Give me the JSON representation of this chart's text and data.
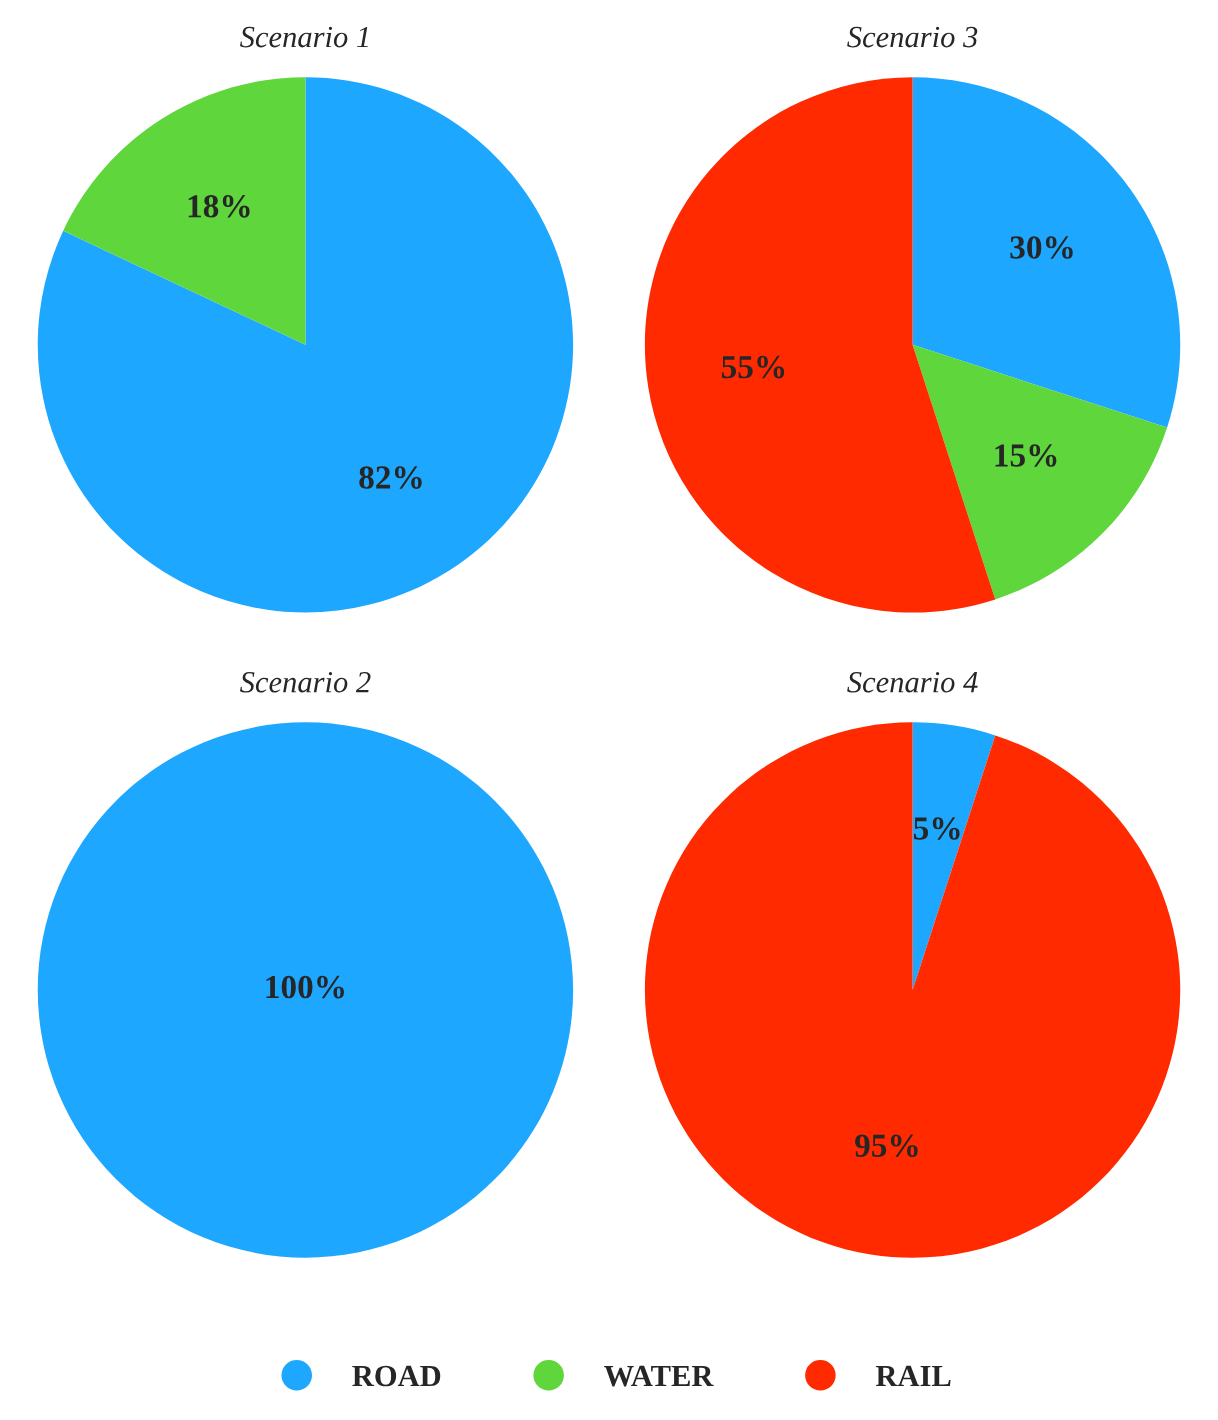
{
  "chart_data": [
    {
      "type": "pie",
      "title": "Scenario 1",
      "categories": [
        "ROAD",
        "WATER",
        "RAIL"
      ],
      "values": [
        82,
        18,
        0
      ],
      "colors": [
        "#1ea7ff",
        "#5fd63c",
        "#ff2a00"
      ],
      "value_labels": [
        "82%",
        "18%",
        null
      ],
      "legend": "bottom"
    },
    {
      "type": "pie",
      "title": "Scenario 3",
      "categories": [
        null,
        null,
        null
      ],
      "values": [
        30,
        15,
        55
      ],
      "colors": [
        "#1ea7ff",
        "#5fd63c",
        "#ff2a00"
      ],
      "value_labels": [
        "30%",
        "15%",
        "55%"
      ]
    },
    {
      "type": "pie",
      "title": "Scenario 2",
      "categories": [
        null
      ],
      "values": [
        100
      ],
      "colors": [
        "#1ea7ff"
      ],
      "value_labels": [
        "100%"
      ]
    },
    {
      "type": "pie",
      "title": "Scenario 4",
      "categories": [
        null,
        null
      ],
      "values": [
        5,
        95
      ],
      "colors": [
        "#1ea7ff",
        "#ff2a00"
      ],
      "value_labels": [
        "5%",
        "95%"
      ]
    }
  ]
}
